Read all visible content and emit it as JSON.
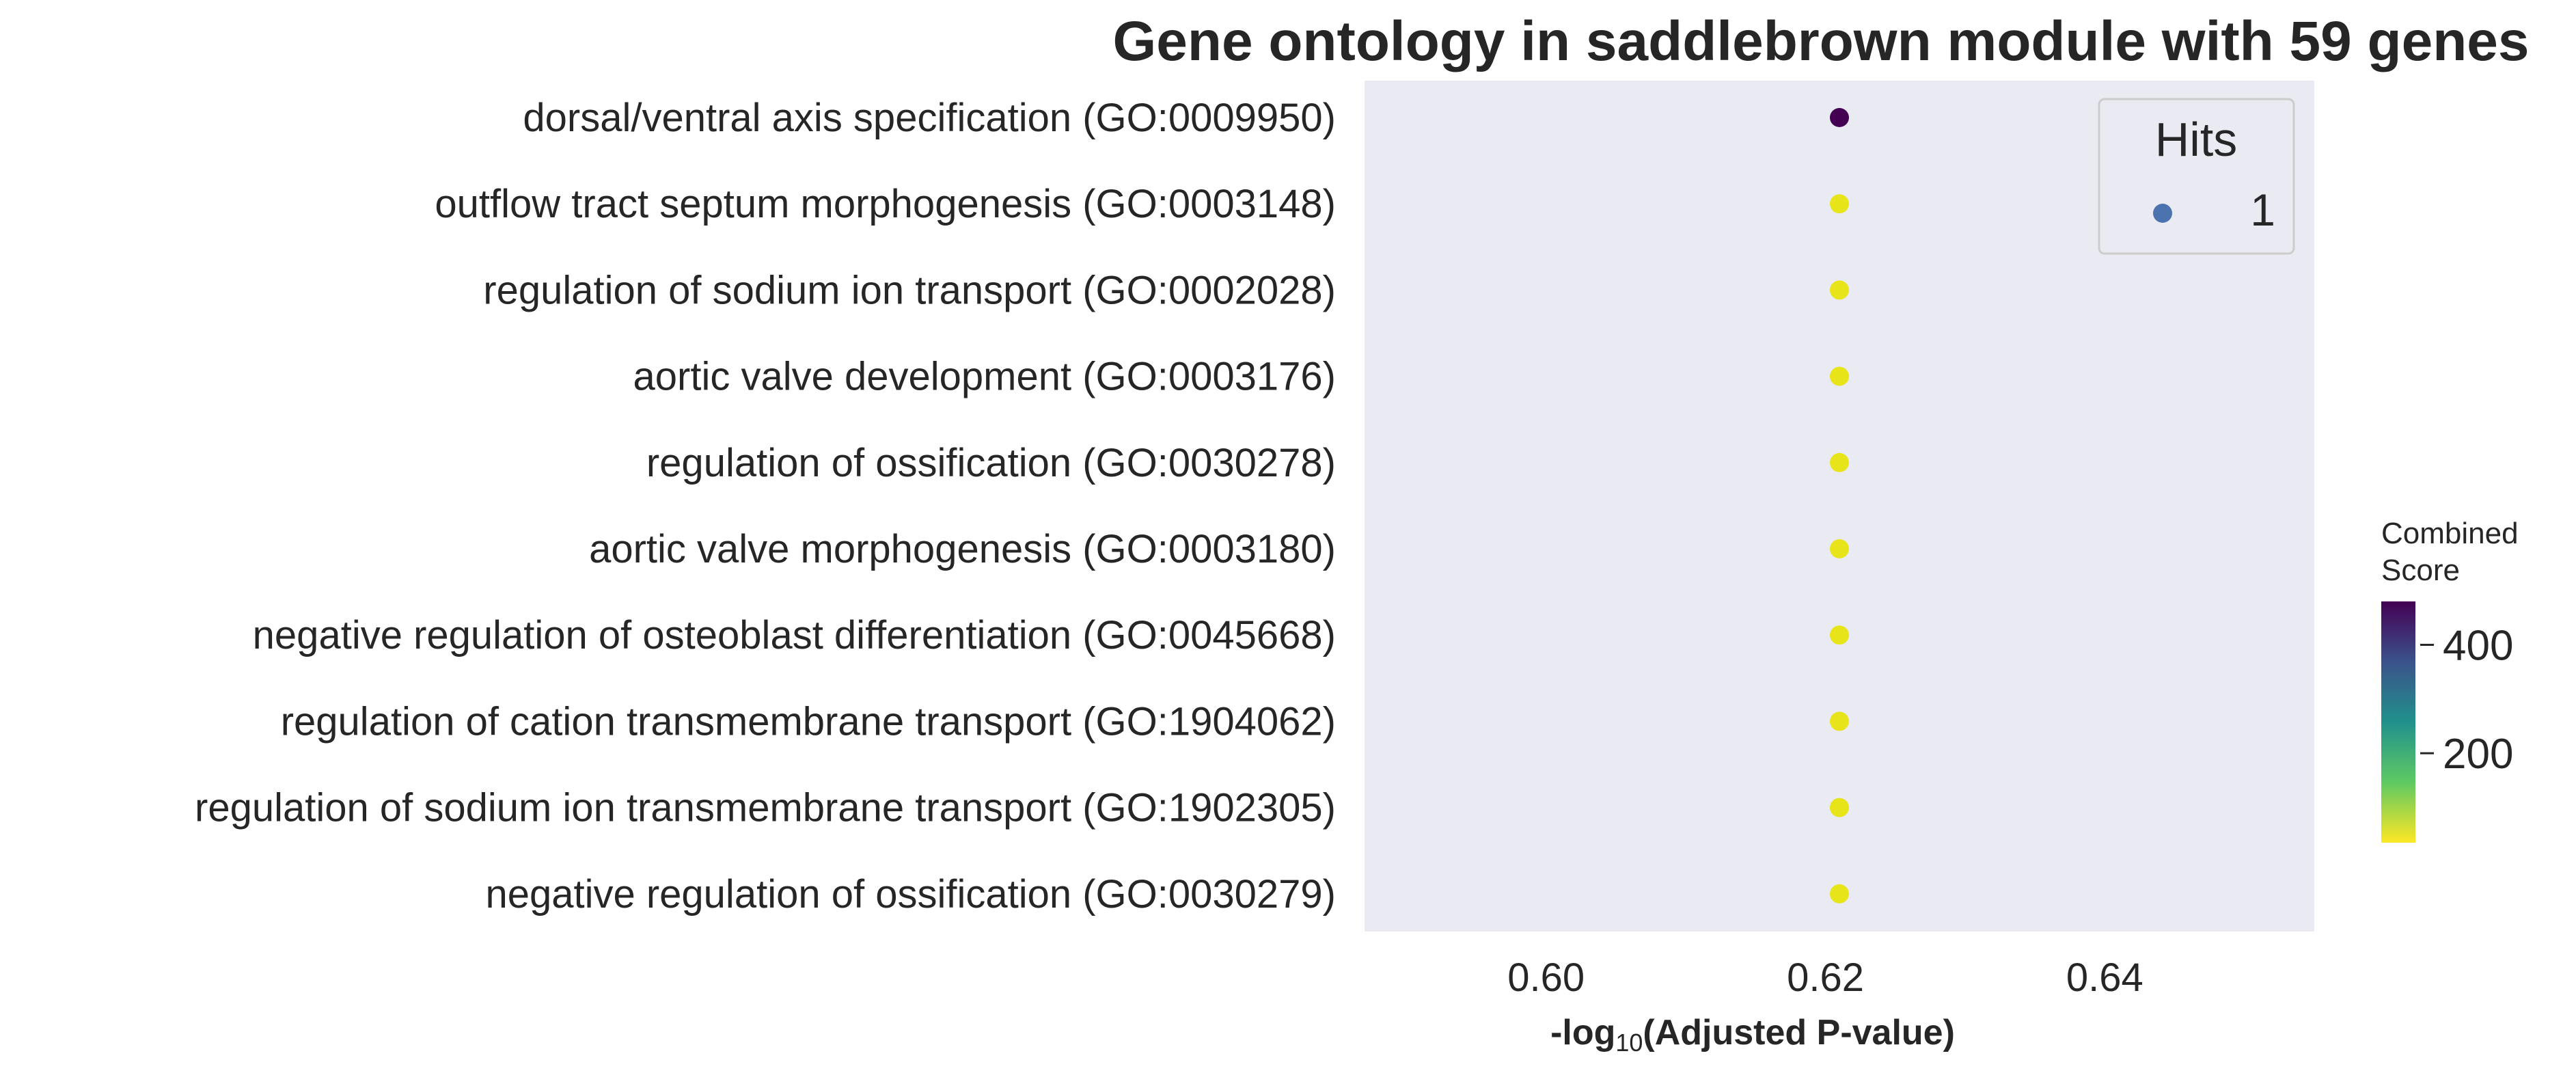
{
  "chart_data": {
    "type": "scatter",
    "title": "Gene ontology in saddlebrown module with 59 genes",
    "xlabel_parts": [
      "-log",
      "10",
      "(Adjusted P-value)"
    ],
    "xlim": [
      0.587,
      0.655
    ],
    "xticks": [
      0.6,
      0.62,
      0.64
    ],
    "xtick_labels": [
      "0.60",
      "0.62",
      "0.64"
    ],
    "grid": false,
    "background": "#eaeaf2",
    "categories": [
      "dorsal/ventral axis specification (GO:0009950)",
      "outflow tract septum morphogenesis (GO:0003148)",
      "regulation of sodium ion transport (GO:0002028)",
      "aortic valve development (GO:0003176)",
      "regulation of ossification (GO:0030278)",
      "aortic valve morphogenesis (GO:0003180)",
      "negative regulation of osteoblast differentiation (GO:0045668)",
      "regulation of cation transmembrane transport (GO:1904062)",
      "regulation of sodium ion transmembrane transport (GO:1902305)",
      "negative regulation of ossification (GO:0030279)"
    ],
    "x": [
      0.621,
      0.621,
      0.621,
      0.621,
      0.621,
      0.621,
      0.621,
      0.621,
      0.621,
      0.621
    ],
    "hits": [
      1,
      1,
      1,
      1,
      1,
      1,
      1,
      1,
      1,
      1
    ],
    "combined_score": [
      480,
      60,
      60,
      60,
      60,
      60,
      60,
      60,
      60,
      60
    ],
    "point_colors": [
      "#440154",
      "#e7e419",
      "#e7e419",
      "#e7e419",
      "#e7e419",
      "#e7e419",
      "#e7e419",
      "#e7e419",
      "#e7e419",
      "#e7e419"
    ],
    "legend": {
      "title": "Hits",
      "placement": "top-right",
      "entries": [
        {
          "label": "1",
          "color": "#4c72b0"
        }
      ]
    },
    "colorbar": {
      "title_lines": [
        "Combined",
        "Score"
      ],
      "range": [
        35,
        480
      ],
      "ticks": [
        400,
        200
      ],
      "tick_labels": [
        "400",
        "200"
      ],
      "colormap": "viridis_r",
      "colors": [
        "#fde725",
        "#5ec962",
        "#21918c",
        "#3b528b",
        "#440154"
      ]
    }
  }
}
